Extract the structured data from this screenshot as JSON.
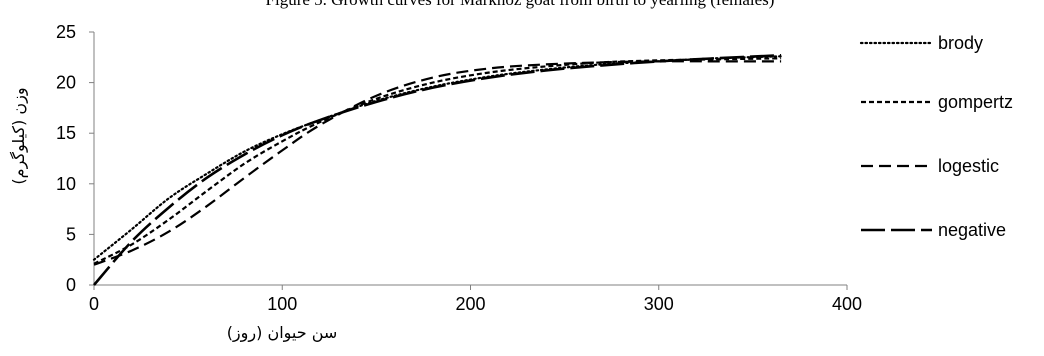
{
  "chart_data": {
    "type": "line",
    "title": "Figure 5. Growth curves for Markhoz goat from birth to yearling (females)",
    "xlabel": "سن حیوان (روز)",
    "ylabel": "وزن (کیلوگرم)",
    "xlim": [
      0,
      400
    ],
    "ylim": [
      0,
      25
    ],
    "xticks": [
      "0",
      "100",
      "200",
      "300",
      "400"
    ],
    "yticks": [
      "0",
      "5",
      "10",
      "15",
      "20",
      "25"
    ],
    "grid": false,
    "legend_position": "right",
    "series": [
      {
        "name": "brody",
        "style": "dotted",
        "x": [
          0,
          20,
          40,
          60,
          80,
          100,
          120,
          150,
          180,
          210,
          240,
          270,
          300,
          330,
          365
        ],
        "y": [
          2.5,
          5.5,
          8.6,
          11.0,
          13.2,
          14.9,
          16.3,
          18.2,
          19.6,
          20.6,
          21.3,
          21.8,
          22.1,
          22.4,
          22.6
        ]
      },
      {
        "name": "gompertz",
        "style": "short-dash",
        "x": [
          0,
          20,
          40,
          60,
          80,
          100,
          120,
          150,
          180,
          210,
          240,
          270,
          300,
          330,
          365
        ],
        "y": [
          2.1,
          4.0,
          6.5,
          9.3,
          12.0,
          14.2,
          16.1,
          18.4,
          20.0,
          21.0,
          21.6,
          22.0,
          22.2,
          22.3,
          22.4
        ]
      },
      {
        "name": "logestic",
        "style": "long-dash",
        "x": [
          0,
          20,
          40,
          60,
          80,
          100,
          120,
          150,
          180,
          210,
          240,
          270,
          300,
          330,
          365
        ],
        "y": [
          2.0,
          3.4,
          5.3,
          7.8,
          10.6,
          13.3,
          15.8,
          18.7,
          20.5,
          21.4,
          21.8,
          22.0,
          22.1,
          22.1,
          22.1
        ]
      },
      {
        "name": "negative",
        "style": "dash-dot-long",
        "x": [
          0,
          20,
          40,
          60,
          80,
          100,
          120,
          150,
          180,
          210,
          240,
          270,
          300,
          330,
          365
        ],
        "y": [
          0.0,
          4.3,
          7.7,
          10.6,
          12.9,
          14.8,
          16.3,
          18.1,
          19.5,
          20.5,
          21.2,
          21.7,
          22.1,
          22.4,
          22.7
        ]
      }
    ]
  }
}
